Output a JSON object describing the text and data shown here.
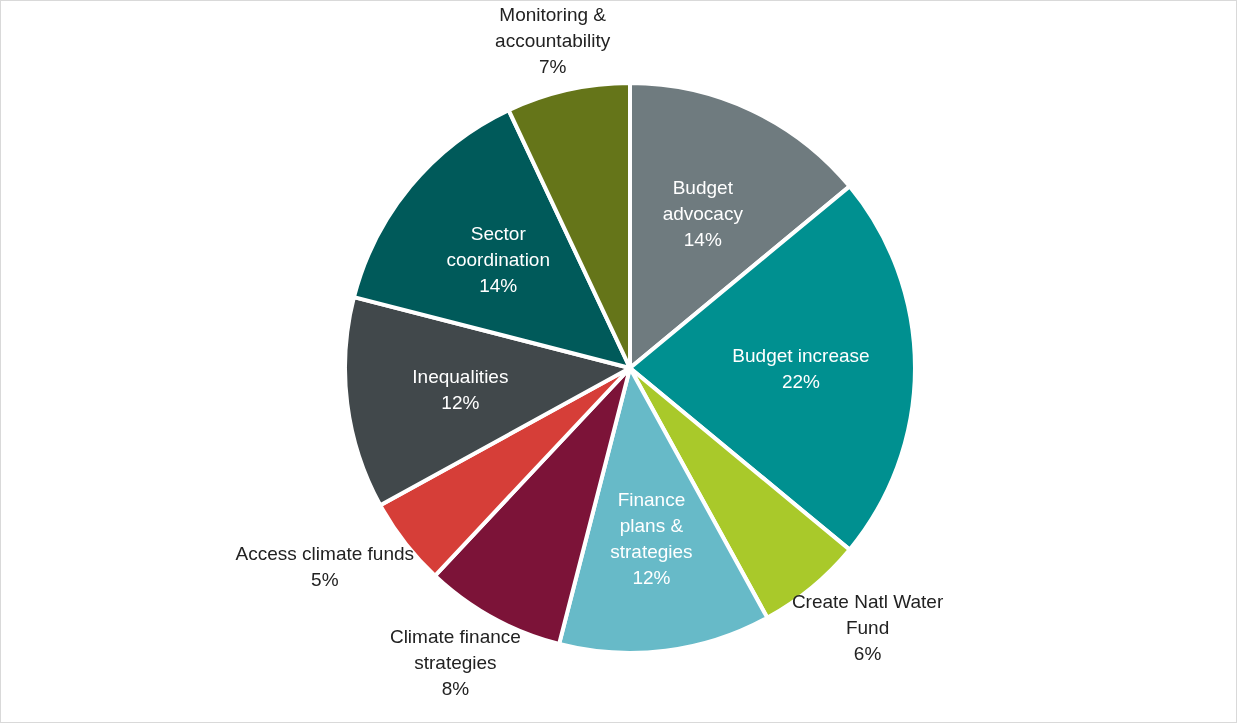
{
  "chart_data": {
    "type": "pie",
    "categories": [
      "Budget advocacy",
      "Budget increase",
      "Create Natl Water Fund",
      "Finance plans & strategies",
      "Climate finance strategies",
      "Access climate funds",
      "Inequalities",
      "Sector coordination",
      "Monitoring & accountability"
    ],
    "values": [
      14,
      22,
      6,
      12,
      8,
      5,
      12,
      14,
      7
    ],
    "colors": [
      "#6f7b7f",
      "#009090",
      "#a9c92a",
      "#67bac8",
      "#7c1338",
      "#d63e38",
      "#41484b",
      "#005a5a",
      "#657519"
    ],
    "value_labels": [
      "14%",
      "22%",
      "6%",
      "12%",
      "8%",
      "5%",
      "12%",
      "14%",
      "7%"
    ]
  }
}
